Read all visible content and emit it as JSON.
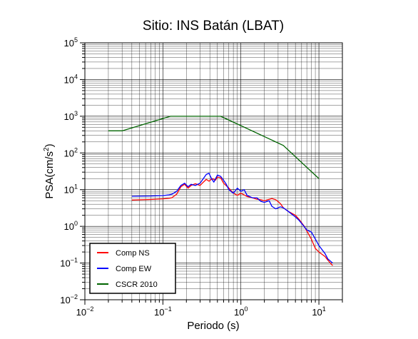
{
  "chart_data": {
    "type": "line",
    "title": "Sitio: INS Batán (LBAT)",
    "xlabel": "Periodo (s)",
    "ylabel": "PSA(cm/s²)",
    "ylabel_base": "PSA(cm/s",
    "ylabel_sup": "2",
    "ylabel_end": ")",
    "x_scale": "log",
    "y_scale": "log",
    "xlim": [
      0.01,
      20
    ],
    "ylim": [
      0.01,
      100000
    ],
    "x_ticks": [
      {
        "value": 0.01,
        "base": "10",
        "exp": "−2"
      },
      {
        "value": 0.1,
        "base": "10",
        "exp": "−1"
      },
      {
        "value": 1,
        "base": "10",
        "exp": "0"
      },
      {
        "value": 10,
        "base": "10",
        "exp": "1"
      }
    ],
    "y_ticks": [
      {
        "value": 0.01,
        "base": "10",
        "exp": "−2"
      },
      {
        "value": 0.1,
        "base": "10",
        "exp": "−1"
      },
      {
        "value": 1,
        "base": "10",
        "exp": "0"
      },
      {
        "value": 10,
        "base": "10",
        "exp": "1"
      },
      {
        "value": 100,
        "base": "10",
        "exp": "2"
      },
      {
        "value": 1000,
        "base": "10",
        "exp": "3"
      },
      {
        "value": 10000,
        "base": "10",
        "exp": "4"
      },
      {
        "value": 100000,
        "base": "10",
        "exp": "5"
      }
    ],
    "grid": true,
    "legend_position": "bottom-left",
    "series": [
      {
        "name": "Comp NS",
        "color": "#ff0000",
        "points": [
          [
            0.04,
            5.2
          ],
          [
            0.07,
            5.4
          ],
          [
            0.1,
            5.6
          ],
          [
            0.12,
            5.8
          ],
          [
            0.13,
            6.0
          ],
          [
            0.15,
            7.5
          ],
          [
            0.17,
            12
          ],
          [
            0.19,
            14
          ],
          [
            0.21,
            11
          ],
          [
            0.23,
            13
          ],
          [
            0.26,
            14.5
          ],
          [
            0.3,
            13
          ],
          [
            0.33,
            16
          ],
          [
            0.36,
            19
          ],
          [
            0.39,
            17
          ],
          [
            0.43,
            20
          ],
          [
            0.47,
            18
          ],
          [
            0.5,
            22
          ],
          [
            0.55,
            21
          ],
          [
            0.6,
            15
          ],
          [
            0.7,
            11
          ],
          [
            0.8,
            8
          ],
          [
            0.9,
            7
          ],
          [
            1.0,
            8
          ],
          [
            1.2,
            6.5
          ],
          [
            1.4,
            6
          ],
          [
            1.6,
            5.5
          ],
          [
            1.8,
            5.3
          ],
          [
            2.0,
            5
          ],
          [
            2.2,
            5.3
          ],
          [
            2.5,
            5.7
          ],
          [
            2.8,
            5.3
          ],
          [
            3.2,
            4.2
          ],
          [
            3.5,
            3.2
          ],
          [
            4.0,
            2.6
          ],
          [
            5.0,
            2.0
          ],
          [
            5.5,
            1.6
          ],
          [
            6.5,
            1.0
          ],
          [
            7.0,
            0.75
          ],
          [
            8.0,
            0.45
          ],
          [
            9.0,
            0.25
          ],
          [
            10,
            0.2
          ],
          [
            12,
            0.15
          ],
          [
            13,
            0.12
          ],
          [
            15,
            0.085
          ]
        ]
      },
      {
        "name": "Comp EW",
        "color": "#0000ff",
        "points": [
          [
            0.04,
            6.6
          ],
          [
            0.07,
            6.7
          ],
          [
            0.1,
            6.9
          ],
          [
            0.12,
            7.2
          ],
          [
            0.13,
            7.5
          ],
          [
            0.15,
            9
          ],
          [
            0.17,
            13
          ],
          [
            0.19,
            15
          ],
          [
            0.21,
            12
          ],
          [
            0.23,
            14
          ],
          [
            0.26,
            13
          ],
          [
            0.3,
            15
          ],
          [
            0.33,
            20
          ],
          [
            0.36,
            26
          ],
          [
            0.39,
            28
          ],
          [
            0.42,
            20
          ],
          [
            0.45,
            16
          ],
          [
            0.5,
            25
          ],
          [
            0.55,
            23
          ],
          [
            0.6,
            18
          ],
          [
            0.65,
            14
          ],
          [
            0.7,
            10
          ],
          [
            0.8,
            8
          ],
          [
            0.9,
            11
          ],
          [
            1.0,
            9
          ],
          [
            1.1,
            10
          ],
          [
            1.2,
            7
          ],
          [
            1.4,
            6
          ],
          [
            1.6,
            6
          ],
          [
            1.8,
            4.8
          ],
          [
            2.0,
            4.5
          ],
          [
            2.3,
            5
          ],
          [
            2.5,
            3.5
          ],
          [
            2.8,
            3.0
          ],
          [
            3.2,
            3.4
          ],
          [
            3.5,
            3.2
          ],
          [
            4.0,
            2.6
          ],
          [
            5.0,
            1.8
          ],
          [
            5.5,
            1.5
          ],
          [
            6.0,
            1.2
          ],
          [
            7.0,
            0.8
          ],
          [
            8.0,
            0.7
          ],
          [
            9.0,
            0.45
          ],
          [
            10,
            0.3
          ],
          [
            12,
            0.18
          ],
          [
            13,
            0.13
          ],
          [
            15,
            0.1
          ]
        ]
      },
      {
        "name": "CSCR 2010",
        "color": "#006400",
        "points": [
          [
            0.02,
            400
          ],
          [
            0.03,
            400
          ],
          [
            0.125,
            1000
          ],
          [
            0.55,
            1000
          ],
          [
            3.5,
            160
          ],
          [
            10,
            20
          ]
        ]
      }
    ]
  }
}
